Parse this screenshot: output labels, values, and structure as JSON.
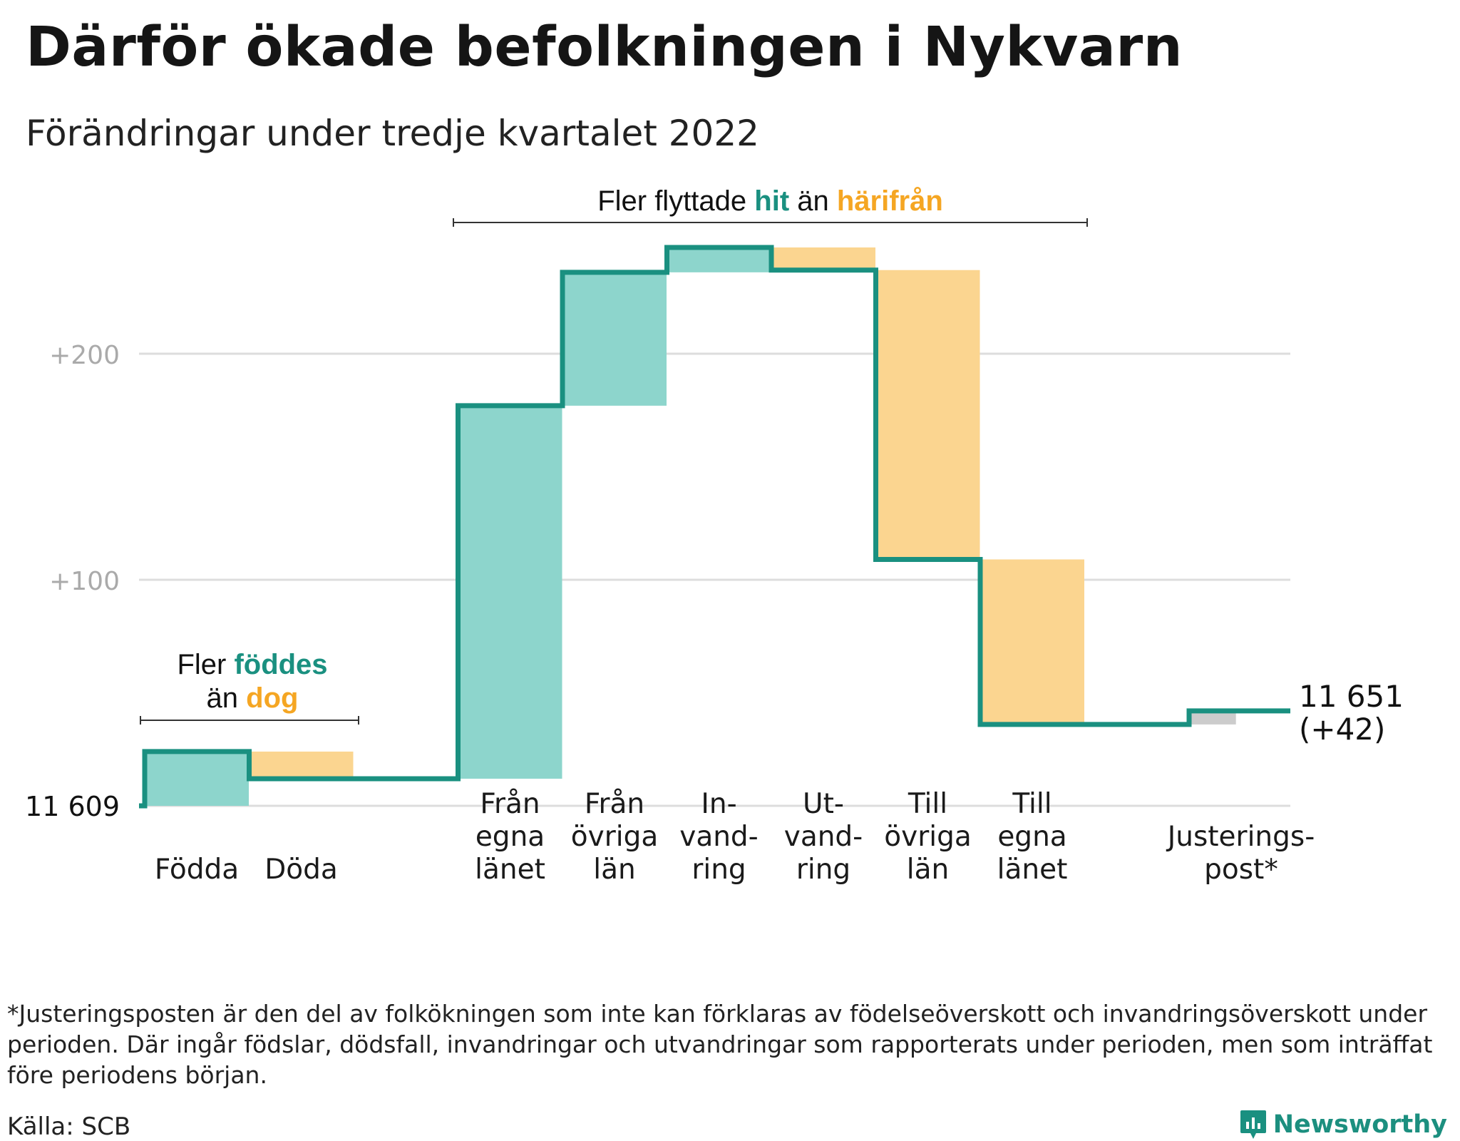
{
  "header": {
    "title": "Därför ökade befolkningen i Nykvarn",
    "subtitle": "Förändringar under tredje kvartalet 2022"
  },
  "chart_data": {
    "type": "waterfall",
    "base_value": 11609,
    "base_label": "11 609",
    "end_label_line1": "11 651",
    "end_label_line2": "(+42)",
    "y_range": [
      0,
      247
    ],
    "y_gridlines": [
      {
        "value": 0,
        "label": ""
      },
      {
        "value": 100,
        "label": "+100"
      },
      {
        "value": 200,
        "label": "+200"
      }
    ],
    "steps": [
      {
        "name": "Födda",
        "label_lines": [
          "Födda"
        ],
        "change": 24,
        "kind": "positive"
      },
      {
        "name": "Döda",
        "label_lines": [
          "Döda"
        ],
        "change": -12,
        "kind": "negative"
      },
      {
        "name": "Från egna länet",
        "label_lines": [
          "Från",
          "egna",
          "länet"
        ],
        "change": 165,
        "kind": "positive"
      },
      {
        "name": "Från övriga län",
        "label_lines": [
          "Från",
          "övriga",
          "län"
        ],
        "change": 59,
        "kind": "positive"
      },
      {
        "name": "Invandring",
        "label_lines": [
          "In-",
          "vand-",
          "ring"
        ],
        "change": 11,
        "kind": "positive"
      },
      {
        "name": "Utvandring",
        "label_lines": [
          "Ut-",
          "vand-",
          "ring"
        ],
        "change": -10,
        "kind": "negative"
      },
      {
        "name": "Till övriga län",
        "label_lines": [
          "Till",
          "övriga",
          "län"
        ],
        "change": -128,
        "kind": "negative"
      },
      {
        "name": "Till egna länet",
        "label_lines": [
          "Till",
          "egna",
          "länet"
        ],
        "change": -73,
        "kind": "negative"
      },
      {
        "name": "Justeringspost*",
        "label_lines": [
          "Justerings-",
          "post*"
        ],
        "change": 6,
        "kind": "adjustment"
      }
    ],
    "annotations": {
      "births": {
        "line1_prefix": "Fler ",
        "line1_highlight": "föddes",
        "line2_prefix": "än ",
        "line2_highlight": "dog"
      },
      "migration": {
        "prefix": "Fler flyttade ",
        "highlight1": "hit",
        "middle": " än ",
        "highlight2": "härifrån"
      }
    },
    "colors": {
      "line": "#1a9080",
      "positive": "#8dd5cc",
      "negative": "#fbd590",
      "adjustment": "#cccccc",
      "grid": "#dddddd",
      "highlight_teal": "#1a9080",
      "highlight_orange": "#f5a623"
    }
  },
  "footnote": "*Justeringsposten är den del av folkökningen som inte kan förklaras av födelseöverskott och invandringsöverskott under perioden. Där ingår födslar, dödsfall, invandringar och utvandringar som rapporterats under perioden, men som inträffat före periodens början.",
  "source": "Källa: SCB",
  "brand": {
    "name": "Newsworthy",
    "icon": "newsworthy-logo-icon"
  }
}
